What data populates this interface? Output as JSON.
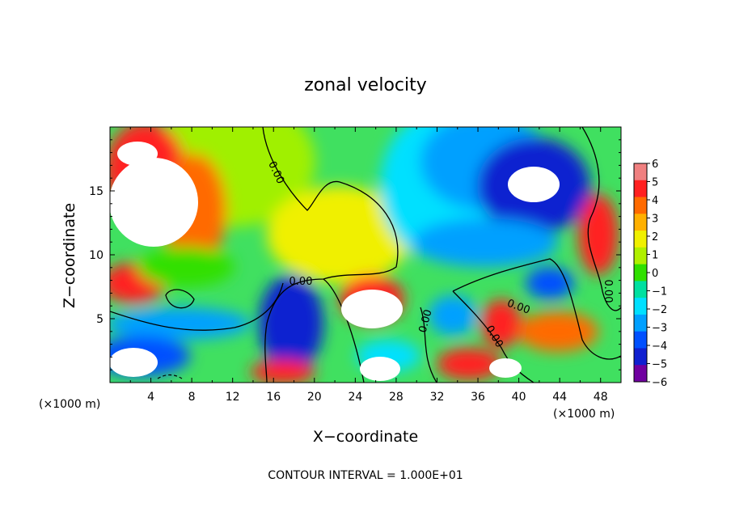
{
  "chart_data": {
    "type": "heatmap",
    "title": "zonal velocity",
    "xlabel": "X−coordinate",
    "ylabel": "Z−coordinate",
    "x_unit": "(×1000 m)",
    "x_unit_right": "(×1000 m)",
    "xlim": [
      0,
      50
    ],
    "ylim": [
      0,
      20
    ],
    "xticks": [
      "4",
      "8",
      "12",
      "16",
      "20",
      "24",
      "28",
      "32",
      "36",
      "40",
      "44",
      "48"
    ],
    "yticks": [
      "5",
      "10",
      "15"
    ],
    "colorbar": {
      "min": -6,
      "max": 6,
      "levels": [
        "6",
        "5",
        "4",
        "3",
        "2",
        "1",
        "0",
        "−1",
        "−2",
        "−3",
        "−4",
        "−5",
        "−6"
      ],
      "colors": [
        "#f08080",
        "#ff2020",
        "#ff6a00",
        "#ffb000",
        "#f0f000",
        "#b0f000",
        "#30e000",
        "#00e0a0",
        "#00e0ff",
        "#00a0ff",
        "#0050ff",
        "#1020d0",
        "#7000a0"
      ]
    },
    "contour_label": "0.00",
    "footer": "CONTOUR INTERVAL = 1.000E+01"
  }
}
